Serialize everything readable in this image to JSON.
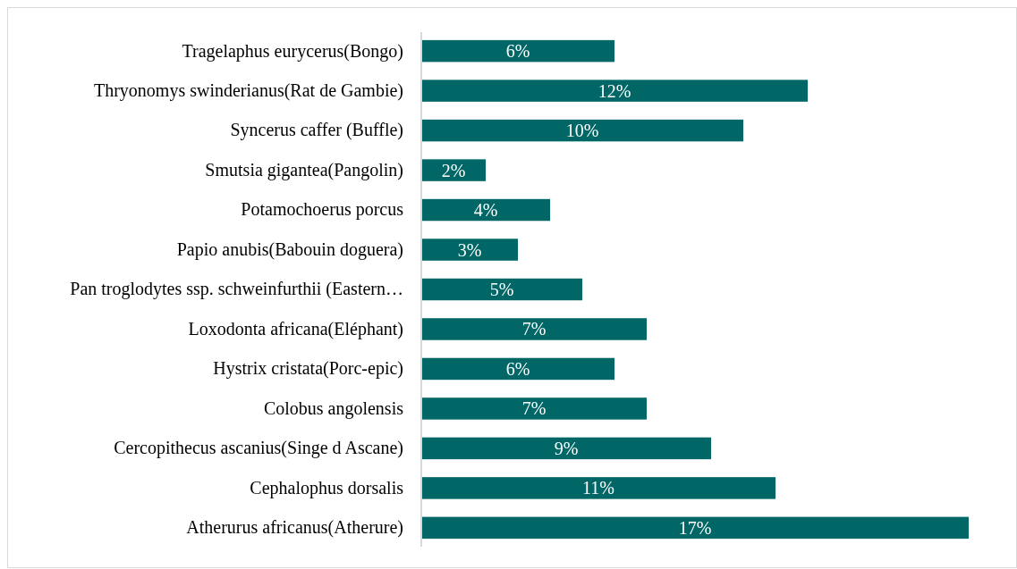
{
  "chart_data": {
    "type": "bar",
    "orientation": "horizontal",
    "categories": [
      "Tragelaphus eurycerus(Bongo)",
      "Thryonomys swinderianus(Rat de Gambie)",
      "Syncerus caffer (Buffle)",
      "Smutsia gigantea(Pangolin)",
      "Potamochoerus porcus",
      "Papio anubis(Babouin doguera)",
      "Pan troglodytes ssp. schweinfurthii (Eastern…",
      "Loxodonta africana(Eléphant)",
      "Hystrix cristata(Porc-epic)",
      "Colobus angolensis",
      "Cercopithecus ascanius(Singe d Ascane)",
      "Cephalophus dorsalis",
      "Atherurus africanus(Atherure)"
    ],
    "values": [
      6,
      12,
      10,
      2,
      4,
      3,
      5,
      7,
      6,
      7,
      9,
      11,
      17
    ],
    "value_labels": [
      "6%",
      "12%",
      "10%",
      "2%",
      "4%",
      "3%",
      "5%",
      "7%",
      "6%",
      "7%",
      "9%",
      "11%",
      "17%"
    ],
    "color": "#006666"
  }
}
